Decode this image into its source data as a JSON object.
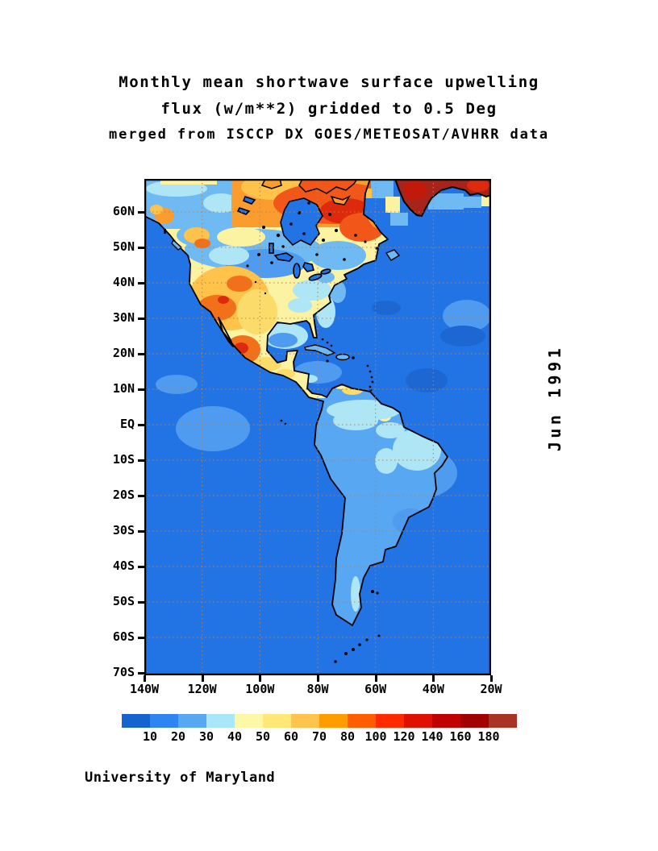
{
  "title": {
    "line1": "Monthly mean shortwave surface upwelling",
    "line2": "flux (w/m**2) gridded to 0.5 Deg",
    "line3": "merged from ISCCP DX GOES/METEOSAT/AVHRR data"
  },
  "side_label": "Jun 1991",
  "footer": "University of Maryland",
  "map": {
    "lat_labels": [
      "60N",
      "50N",
      "40N",
      "30N",
      "20N",
      "10N",
      "EQ",
      "10S",
      "20S",
      "30S",
      "40S",
      "50S",
      "60S",
      "70S"
    ],
    "lon_labels": [
      "140W",
      "120W",
      "100W",
      "80W",
      "60W",
      "40W",
      "20W"
    ],
    "palette": {
      "ocean": "#2273E4",
      "ocean_light": "#4E9BEF",
      "ocean_dark": "#1D67D2",
      "sky": "#6FBAF3",
      "sa_blue": "#57A7F3",
      "cyan": "#AEE6F6",
      "pale_yellow": "#FBF2A2",
      "yellow": "#FBDC6B",
      "amber": "#FFC24A",
      "orange": "#FB9D2E",
      "deep_orange": "#F3701A",
      "red_orange": "#F2571A",
      "red": "#DD2A0C",
      "brick": "#C21A0A",
      "dark_red": "#A8241B",
      "grid": "#C08048",
      "coast": "#000000"
    }
  },
  "colorbar": {
    "labels": [
      "10",
      "20",
      "30",
      "40",
      "50",
      "60",
      "70",
      "80",
      "100",
      "120",
      "140",
      "160",
      "180"
    ],
    "colors": [
      "#1563CE",
      "#2E85F1",
      "#57A7F3",
      "#A9E6F8",
      "#FDF8A8",
      "#FFE878",
      "#FFC44E",
      "#FF9D00",
      "#FF5D00",
      "#FF2A00",
      "#E01000",
      "#C00000",
      "#A20000",
      "#A93227"
    ]
  },
  "chart_data": {
    "type": "heatmap",
    "title": "Monthly mean shortwave surface upwelling flux (w/m**2) gridded to 0.5 Deg",
    "subtitle": "merged from ISCCP DX GOES/METEOSAT/AVHRR data",
    "time_label": "Jun 1991",
    "source_label": "University of Maryland",
    "units": "w/m**2",
    "projection": "lat-lon grid over the Americas",
    "x_axis": {
      "ticks": [
        "140W",
        "120W",
        "100W",
        "80W",
        "60W",
        "40W",
        "20W"
      ],
      "range": [
        "140W",
        "20W"
      ]
    },
    "y_axis": {
      "ticks": [
        "60N",
        "50N",
        "40N",
        "30N",
        "20N",
        "10N",
        "EQ",
        "10S",
        "20S",
        "30S",
        "40S",
        "50S",
        "60S",
        "70S"
      ],
      "range": [
        "70N",
        "70S"
      ]
    },
    "legend_levels": [
      10,
      20,
      30,
      40,
      50,
      60,
      70,
      80,
      100,
      120,
      140,
      160,
      180
    ],
    "legend_colors": [
      "#1563CE",
      "#2E85F1",
      "#57A7F3",
      "#A9E6F8",
      "#FDF8A8",
      "#FFE878",
      "#FFC44E",
      "#FF9D00",
      "#FF5D00",
      "#FF2A00",
      "#E01000",
      "#C00000",
      "#A20000",
      "#A93227"
    ],
    "grid": "dotted gridlines, 10 deg latitude / 20 deg longitude",
    "approx_region_values": {
      "open_ocean": "10-20",
      "tropical_ocean_light_patches": "20-30",
      "amazon_and_south_america_land": "20-40",
      "eastern_us": "40-50",
      "western_us_and_mexico": "50-80",
      "northern_canada": "80-140",
      "greenland_ice": "140-180+"
    }
  }
}
